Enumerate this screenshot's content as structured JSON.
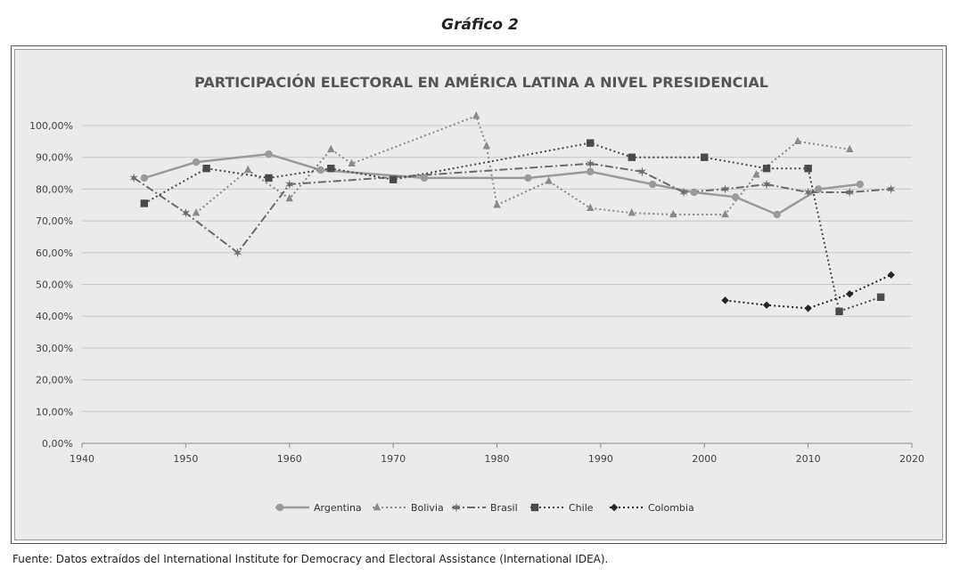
{
  "heading": "Gráfico 2",
  "source_note": "Fuente: Datos extraídos del International Institute for Democracy and Electoral Assistance (International IDEA).",
  "chart_data": {
    "type": "line",
    "title": "PARTICIPACIÓN ELECTORAL EN AMÉRICA LATINA A NIVEL PRESIDENCIAL",
    "xlabel": "",
    "ylabel": "",
    "xlim": [
      1940,
      2020
    ],
    "ylim": [
      0,
      100
    ],
    "x_ticks": [
      1940,
      1950,
      1960,
      1970,
      1980,
      1990,
      2000,
      2010,
      2020
    ],
    "y_ticks": [
      "0,00%",
      "10,00%",
      "20,00%",
      "30,00%",
      "40,00%",
      "50,00%",
      "60,00%",
      "70,00%",
      "80,00%",
      "90,00%",
      "100,00%"
    ],
    "grid": "horizontal",
    "legend_position": "bottom",
    "series": [
      {
        "name": "Argentina",
        "color": "#9a9a9a",
        "marker": "circle",
        "line": "solid",
        "points": [
          [
            1946,
            83.5
          ],
          [
            1951,
            88.5
          ],
          [
            1958,
            91.0
          ],
          [
            1963,
            86.0
          ],
          [
            1973,
            83.5
          ],
          [
            1983,
            83.5
          ],
          [
            1989,
            85.5
          ],
          [
            1995,
            81.5
          ],
          [
            1999,
            79.0
          ],
          [
            2003,
            77.5
          ],
          [
            2007,
            72.0
          ],
          [
            2011,
            80.0
          ],
          [
            2015,
            81.5
          ]
        ]
      },
      {
        "name": "Bolivia",
        "color": "#8a8a8a",
        "marker": "triangle",
        "line": "dotted",
        "points": [
          [
            1951,
            72.5
          ],
          [
            1956,
            86.0
          ],
          [
            1960,
            77.0
          ],
          [
            1964,
            92.5
          ],
          [
            1966,
            88.0
          ],
          [
            1978,
            103.0
          ],
          [
            1979,
            93.5
          ],
          [
            1980,
            75.0
          ],
          [
            1985,
            82.5
          ],
          [
            1989,
            74.0
          ],
          [
            1993,
            72.5
          ],
          [
            1997,
            72.0
          ],
          [
            2002,
            72.0
          ],
          [
            2005,
            84.5
          ],
          [
            2009,
            95.0
          ],
          [
            2014,
            92.5
          ]
        ]
      },
      {
        "name": "Brasil",
        "color": "#6a6a6a",
        "marker": "star",
        "line": "dashdot",
        "points": [
          [
            1945,
            83.5
          ],
          [
            1950,
            72.5
          ],
          [
            1955,
            60.0
          ],
          [
            1960,
            81.5
          ],
          [
            1989,
            88.0
          ],
          [
            1994,
            85.5
          ],
          [
            1998,
            79.0
          ],
          [
            2002,
            80.0
          ],
          [
            2006,
            81.5
          ],
          [
            2010,
            79.0
          ],
          [
            2014,
            79.0
          ],
          [
            2018,
            80.0
          ]
        ]
      },
      {
        "name": "Chile",
        "color": "#4a4a4a",
        "marker": "square",
        "line": "dotted",
        "points": [
          [
            1946,
            75.5
          ],
          [
            1952,
            86.5
          ],
          [
            1958,
            83.5
          ],
          [
            1964,
            86.5
          ],
          [
            1970,
            83.0
          ],
          [
            1989,
            94.5
          ],
          [
            1993,
            90.0
          ],
          [
            2000,
            90.0
          ],
          [
            2006,
            86.5
          ],
          [
            2010,
            86.5
          ],
          [
            2013,
            41.5
          ],
          [
            2017,
            46.0
          ]
        ]
      },
      {
        "name": "Colombia",
        "color": "#262626",
        "marker": "diamond",
        "line": "dotted",
        "points": [
          [
            2002,
            45.0
          ],
          [
            2006,
            43.5
          ],
          [
            2010,
            42.5
          ],
          [
            2014,
            47.0
          ],
          [
            2018,
            53.0
          ]
        ]
      }
    ]
  }
}
